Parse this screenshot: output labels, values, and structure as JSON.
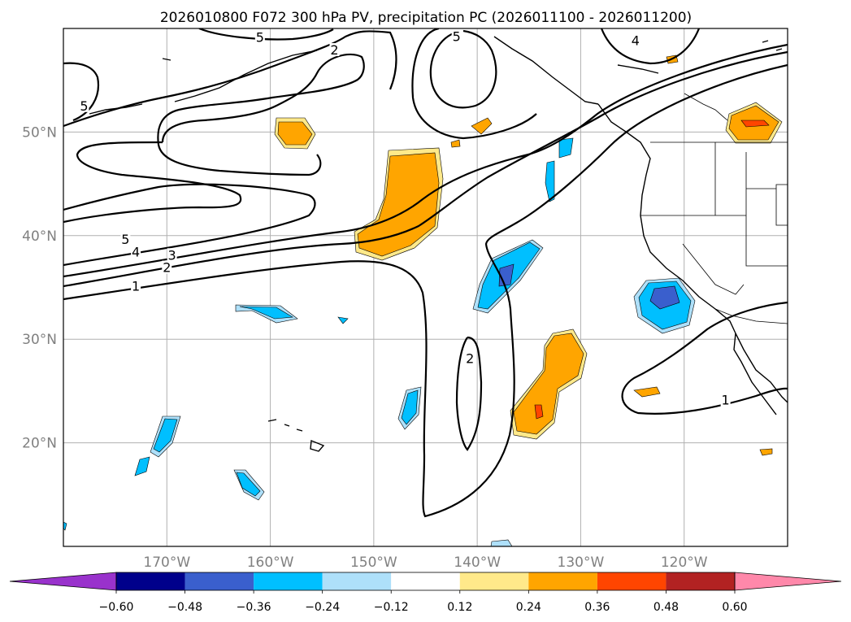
{
  "chart_data": {
    "type": "contour-map",
    "title": "2026010800 F072 300 hPa PV, precipitation PC (2026011100 - 2026011200)",
    "lon_range": [
      -180,
      -110
    ],
    "lat_range": [
      10,
      60
    ],
    "lon_ticks": [
      {
        "value": -170,
        "label": "170°W"
      },
      {
        "value": -160,
        "label": "160°W"
      },
      {
        "value": -150,
        "label": "150°W"
      },
      {
        "value": -140,
        "label": "140°W"
      },
      {
        "value": -130,
        "label": "130°W"
      },
      {
        "value": -120,
        "label": "120°W"
      }
    ],
    "lat_ticks": [
      {
        "value": 20,
        "label": "20°N"
      },
      {
        "value": 30,
        "label": "30°N"
      },
      {
        "value": 40,
        "label": "40°N"
      },
      {
        "value": 50,
        "label": "50°N"
      }
    ],
    "colorbar": {
      "levels": [
        "−0.60",
        "−0.48",
        "−0.36",
        "−0.24",
        "−0.12",
        "0.12",
        "0.24",
        "0.36",
        "0.48",
        "0.60"
      ],
      "colors": [
        "#9932cc",
        "#00008b",
        "#3a5fcd",
        "#00bfff",
        "#aee0fa",
        "#ffffff",
        "#ffe98a",
        "#ffa500",
        "#ff4500",
        "#b22222",
        "#ff88aa"
      ]
    },
    "pv_contour_labels": [
      {
        "text": "5",
        "lon": -174.0,
        "lat": 39.5
      },
      {
        "text": "4",
        "lon": -173.0,
        "lat": 38.3
      },
      {
        "text": "3",
        "lon": -169.5,
        "lat": 38.0
      },
      {
        "text": "2",
        "lon": -170.0,
        "lat": 36.8
      },
      {
        "text": "1",
        "lon": -173.0,
        "lat": 35.0
      },
      {
        "text": "2",
        "lon": -140.7,
        "lat": 28.0
      },
      {
        "text": "5",
        "lon": -142.0,
        "lat": 59.1
      },
      {
        "text": "5",
        "lon": -161.0,
        "lat": 59.0
      },
      {
        "text": "2",
        "lon": -153.8,
        "lat": 57.8
      },
      {
        "text": "4",
        "lon": -124.7,
        "lat": 58.7
      },
      {
        "text": "1",
        "lon": -116.0,
        "lat": 24.0
      },
      {
        "text": "5",
        "lon": -178.0,
        "lat": 52.4
      }
    ]
  }
}
